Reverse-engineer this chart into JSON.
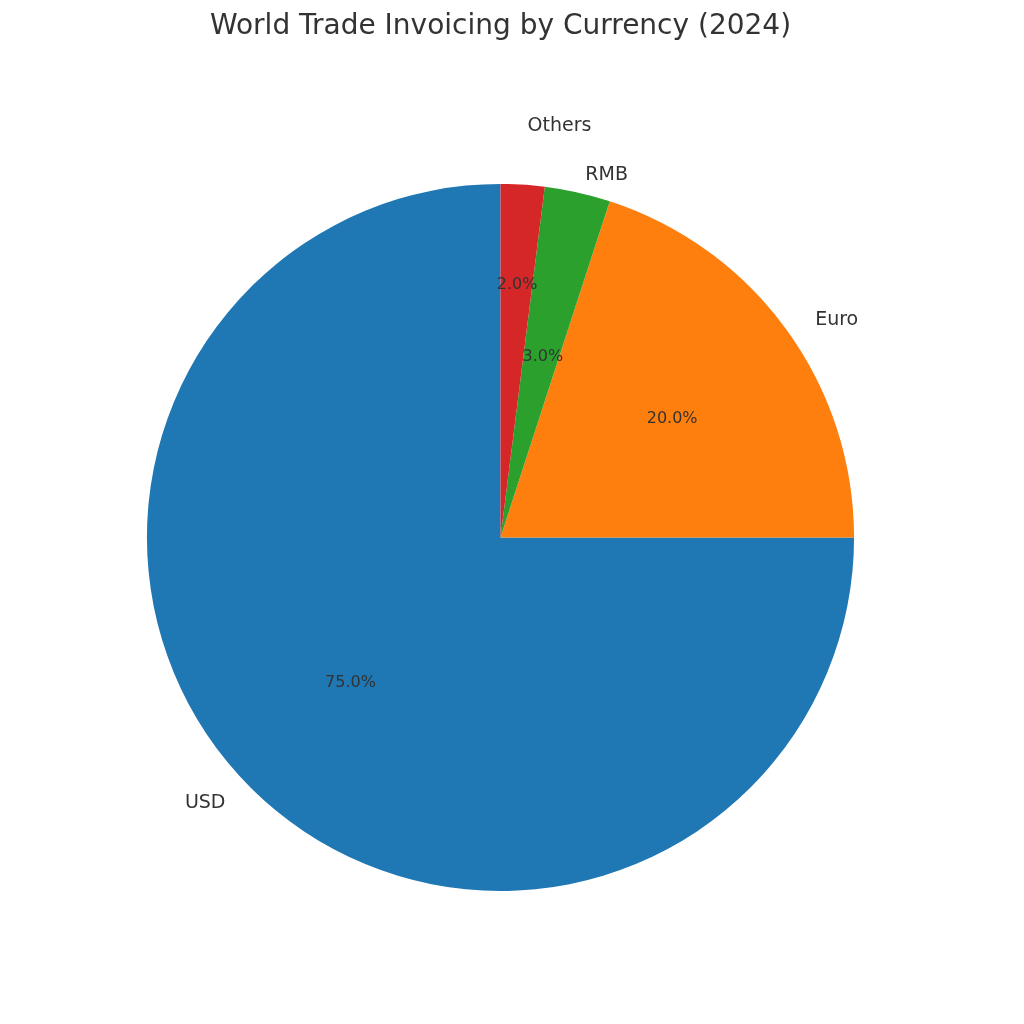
{
  "chart_data": {
    "type": "pie",
    "title": "World Trade Invoicing by Currency (2024)",
    "categories": [
      "USD",
      "Euro",
      "RMB",
      "Others"
    ],
    "values": [
      75,
      20,
      3,
      2
    ],
    "colors": [
      "#1f77b4",
      "#ff7f0e",
      "#2ca02c",
      "#d62728"
    ],
    "value_labels": [
      "75.0%",
      "20.0%",
      "3.0%",
      "2.0%"
    ]
  }
}
